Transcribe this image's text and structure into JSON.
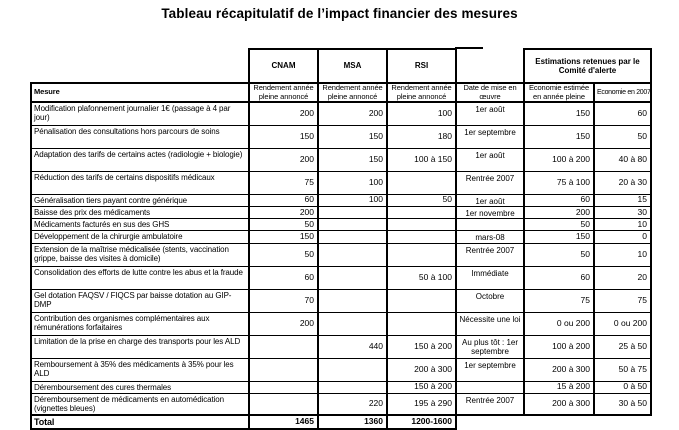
{
  "title": "Tableau récapitulatif de l’impact financier des mesures",
  "colors": {
    "text": "#000000",
    "border": "#000000",
    "background": "#ffffff"
  },
  "table": {
    "group_headers": {
      "cnam": "CNAM",
      "msa": "MSA",
      "rsi": "RSI",
      "estimations": "Estimations retenues par le Comité d'alerte"
    },
    "col_headers": {
      "mesure": "Mesure",
      "rendement": "Rendement année pleine annoncé",
      "date": "Date de mise en œuvre",
      "eco_pleine": "Economie estimée en année pleine",
      "eco_2007": "Economie en 2007"
    },
    "rows": [
      {
        "mesure": "Modification plafonnement journalier 1€ (passage à 4 par jour)",
        "cnam": "200",
        "msa": "200",
        "rsi": "100",
        "date": "1er août",
        "eco_pleine": "150",
        "eco_2007": "60"
      },
      {
        "mesure": "Pénalisation des consultations hors parcours de soins",
        "cnam": "150",
        "msa": "150",
        "rsi": "180",
        "date": "1er septembre",
        "eco_pleine": "150",
        "eco_2007": "50"
      },
      {
        "mesure": "Adaptation des tarifs de certains actes (radiologie + biologie)",
        "cnam": "200",
        "msa": "150",
        "rsi": "100 à 150",
        "date": "1er août",
        "eco_pleine": "100 à 200",
        "eco_2007": "40 à 80"
      },
      {
        "mesure": "Réduction des tarifs de certains dispositifs médicaux",
        "cnam": "75",
        "msa": "100",
        "rsi": "",
        "date": "Rentrée 2007",
        "eco_pleine": "75 à 100",
        "eco_2007": "20 à 30"
      },
      {
        "mesure": "Généralisation tiers payant contre générique",
        "cnam": "60",
        "msa": "100",
        "rsi": "50",
        "date": "1er août",
        "eco_pleine": "60",
        "eco_2007": "15"
      },
      {
        "mesure": "Baisse des prix des médicaments",
        "cnam": "200",
        "msa": "",
        "rsi": "",
        "date": "1er novembre",
        "eco_pleine": "200",
        "eco_2007": "30"
      },
      {
        "mesure": "Médicaments facturés en sus des GHS",
        "cnam": "50",
        "msa": "",
        "rsi": "",
        "date": "",
        "eco_pleine": "50",
        "eco_2007": "10"
      },
      {
        "mesure": "Développement de la chirurgie ambulatoire",
        "cnam": "150",
        "msa": "",
        "rsi": "",
        "date": "mars-08",
        "eco_pleine": "150",
        "eco_2007": "0"
      },
      {
        "mesure": "Extension de la maîtrise médicalisée (stents, vaccination grippe, baisse des visites à domicile)",
        "cnam": "50",
        "msa": "",
        "rsi": "",
        "date": "Rentrée 2007",
        "eco_pleine": "50",
        "eco_2007": "10"
      },
      {
        "mesure": "Consolidation des efforts de lutte contre les abus et la fraude",
        "cnam": "60",
        "msa": "",
        "rsi": "50 à 100",
        "date": "Immédiate",
        "eco_pleine": "60",
        "eco_2007": "20"
      },
      {
        "mesure": "Gel dotation FAQSV / FIQCS par baisse dotation au GIP-DMP",
        "cnam": "70",
        "msa": "",
        "rsi": "",
        "date": "Octobre",
        "eco_pleine": "75",
        "eco_2007": "75"
      },
      {
        "mesure": "Contribution des organismes complémentaires aux rémunérations forfaitaires",
        "cnam": "200",
        "msa": "",
        "rsi": "",
        "date": "Nécessite une loi",
        "eco_pleine": "0 ou 200",
        "eco_2007": "0 ou 200"
      },
      {
        "mesure": "Limitation de la prise en charge des transports pour les ALD",
        "cnam": "",
        "msa": "440",
        "rsi": "150 à 200",
        "date": "Au plus tôt : 1er septembre",
        "eco_pleine": "100 à 200",
        "eco_2007": "25 à 50"
      },
      {
        "mesure": "Remboursement à 35% des médicaments à 35% pour les ALD",
        "cnam": "",
        "msa": "",
        "rsi": "200 à 300",
        "date": "1er septembre",
        "eco_pleine": "200 à 300",
        "eco_2007": "50 à 75"
      },
      {
        "mesure": "Déremboursement des cures thermales",
        "cnam": "",
        "msa": "",
        "rsi": "150 à 200",
        "date": "",
        "eco_pleine": "15 à 200",
        "eco_2007": "0 à 50"
      },
      {
        "mesure": "Déremboursement de médicaments en automédication (vignettes bleues)",
        "cnam": "",
        "msa": "220",
        "rsi": "195 à 290",
        "date": "Rentrée 2007",
        "eco_pleine": "200 à 300",
        "eco_2007": "30 à 50"
      }
    ],
    "total": {
      "label": "Total",
      "cnam": "1465",
      "msa": "1360",
      "rsi": "1200-1600"
    }
  }
}
